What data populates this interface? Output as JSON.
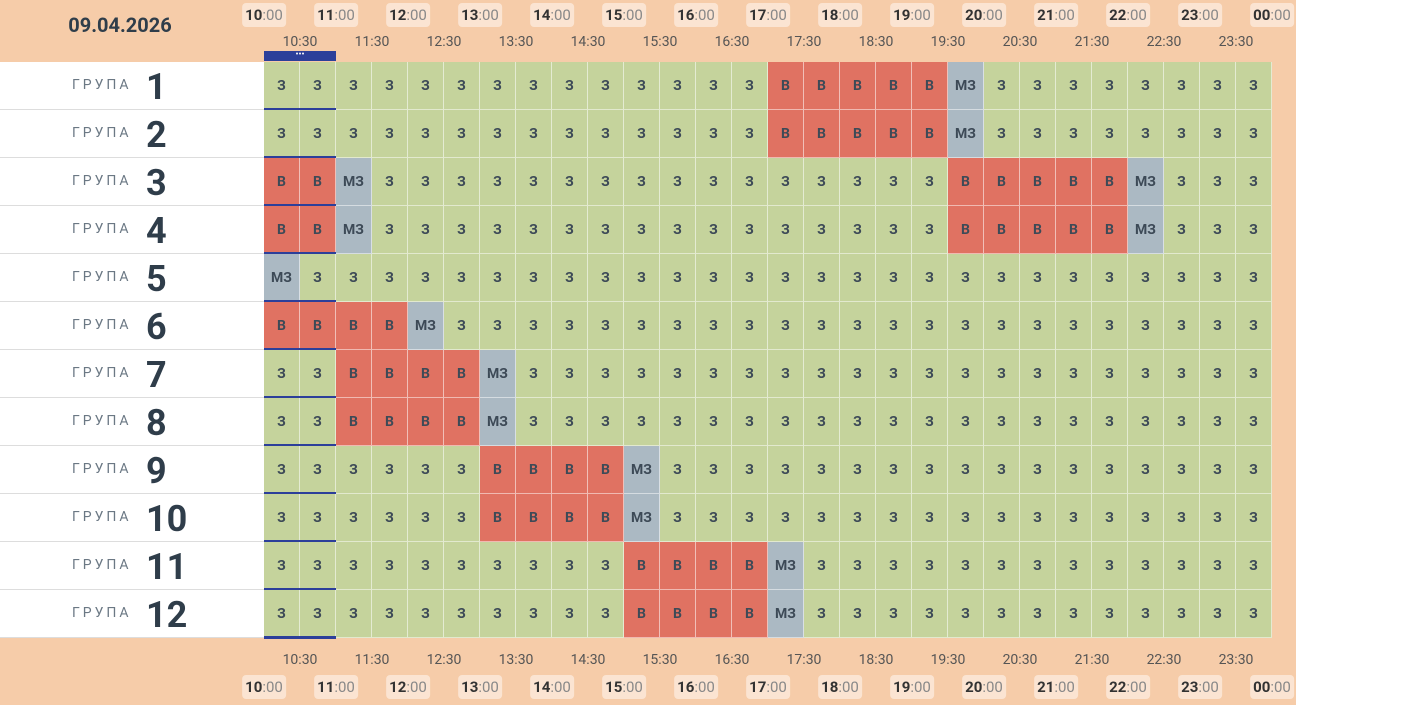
{
  "date": "09.04.2026",
  "hours": [
    {
      "hour": "10",
      "minutes": ":00"
    },
    {
      "hour": "11",
      "minutes": ":00"
    },
    {
      "hour": "12",
      "minutes": ":00"
    },
    {
      "hour": "13",
      "minutes": ":00"
    },
    {
      "hour": "14",
      "minutes": ":00"
    },
    {
      "hour": "15",
      "minutes": ":00"
    },
    {
      "hour": "16",
      "minutes": ":00"
    },
    {
      "hour": "17",
      "minutes": ":00"
    },
    {
      "hour": "18",
      "minutes": ":00"
    },
    {
      "hour": "19",
      "minutes": ":00"
    },
    {
      "hour": "20",
      "minutes": ":00"
    },
    {
      "hour": "21",
      "minutes": ":00"
    },
    {
      "hour": "22",
      "minutes": ":00"
    },
    {
      "hour": "23",
      "minutes": ":00"
    },
    {
      "hour": "00",
      "minutes": ":00"
    }
  ],
  "half_hours": [
    "10:30",
    "11:30",
    "12:30",
    "13:30",
    "14:30",
    "15:30",
    "16:30",
    "17:30",
    "18:30",
    "19:30",
    "20:30",
    "21:30",
    "22:30",
    "23:30"
  ],
  "status_colors": {
    "З": "#c5d39c",
    "В": "#e07262",
    "МЗ": "#abb9c3"
  },
  "groups": [
    {
      "label": "ГРУПА",
      "number": 1,
      "cells": [
        "З",
        "З",
        "З",
        "З",
        "З",
        "З",
        "З",
        "З",
        "З",
        "З",
        "З",
        "З",
        "З",
        "З",
        "В",
        "В",
        "В",
        "В",
        "В",
        "МЗ",
        "З",
        "З",
        "З",
        "З",
        "З",
        "З",
        "З",
        "З"
      ]
    },
    {
      "label": "ГРУПА",
      "number": 2,
      "cells": [
        "З",
        "З",
        "З",
        "З",
        "З",
        "З",
        "З",
        "З",
        "З",
        "З",
        "З",
        "З",
        "З",
        "З",
        "В",
        "В",
        "В",
        "В",
        "В",
        "МЗ",
        "З",
        "З",
        "З",
        "З",
        "З",
        "З",
        "З",
        "З"
      ]
    },
    {
      "label": "ГРУПА",
      "number": 3,
      "cells": [
        "В",
        "В",
        "МЗ",
        "З",
        "З",
        "З",
        "З",
        "З",
        "З",
        "З",
        "З",
        "З",
        "З",
        "З",
        "З",
        "З",
        "З",
        "З",
        "З",
        "В",
        "В",
        "В",
        "В",
        "В",
        "МЗ",
        "З",
        "З",
        "З"
      ]
    },
    {
      "label": "ГРУПА",
      "number": 4,
      "cells": [
        "В",
        "В",
        "МЗ",
        "З",
        "З",
        "З",
        "З",
        "З",
        "З",
        "З",
        "З",
        "З",
        "З",
        "З",
        "З",
        "З",
        "З",
        "З",
        "З",
        "В",
        "В",
        "В",
        "В",
        "В",
        "МЗ",
        "З",
        "З",
        "З"
      ]
    },
    {
      "label": "ГРУПА",
      "number": 5,
      "cells": [
        "МЗ",
        "З",
        "З",
        "З",
        "З",
        "З",
        "З",
        "З",
        "З",
        "З",
        "З",
        "З",
        "З",
        "З",
        "З",
        "З",
        "З",
        "З",
        "З",
        "З",
        "З",
        "З",
        "З",
        "З",
        "З",
        "З",
        "З",
        "З"
      ]
    },
    {
      "label": "ГРУПА",
      "number": 6,
      "cells": [
        "В",
        "В",
        "В",
        "В",
        "МЗ",
        "З",
        "З",
        "З",
        "З",
        "З",
        "З",
        "З",
        "З",
        "З",
        "З",
        "З",
        "З",
        "З",
        "З",
        "З",
        "З",
        "З",
        "З",
        "З",
        "З",
        "З",
        "З",
        "З"
      ]
    },
    {
      "label": "ГРУПА",
      "number": 7,
      "cells": [
        "З",
        "З",
        "В",
        "В",
        "В",
        "В",
        "МЗ",
        "З",
        "З",
        "З",
        "З",
        "З",
        "З",
        "З",
        "З",
        "З",
        "З",
        "З",
        "З",
        "З",
        "З",
        "З",
        "З",
        "З",
        "З",
        "З",
        "З",
        "З"
      ]
    },
    {
      "label": "ГРУПА",
      "number": 8,
      "cells": [
        "З",
        "З",
        "В",
        "В",
        "В",
        "В",
        "МЗ",
        "З",
        "З",
        "З",
        "З",
        "З",
        "З",
        "З",
        "З",
        "З",
        "З",
        "З",
        "З",
        "З",
        "З",
        "З",
        "З",
        "З",
        "З",
        "З",
        "З",
        "З"
      ]
    },
    {
      "label": "ГРУПА",
      "number": 9,
      "cells": [
        "З",
        "З",
        "З",
        "З",
        "З",
        "З",
        "В",
        "В",
        "В",
        "В",
        "МЗ",
        "З",
        "З",
        "З",
        "З",
        "З",
        "З",
        "З",
        "З",
        "З",
        "З",
        "З",
        "З",
        "З",
        "З",
        "З",
        "З",
        "З"
      ]
    },
    {
      "label": "ГРУПА",
      "number": 10,
      "cells": [
        "З",
        "З",
        "З",
        "З",
        "З",
        "З",
        "В",
        "В",
        "В",
        "В",
        "МЗ",
        "З",
        "З",
        "З",
        "З",
        "З",
        "З",
        "З",
        "З",
        "З",
        "З",
        "З",
        "З",
        "З",
        "З",
        "З",
        "З",
        "З"
      ]
    },
    {
      "label": "ГРУПА",
      "number": 11,
      "cells": [
        "З",
        "З",
        "З",
        "З",
        "З",
        "З",
        "З",
        "З",
        "З",
        "З",
        "В",
        "В",
        "В",
        "В",
        "МЗ",
        "З",
        "З",
        "З",
        "З",
        "З",
        "З",
        "З",
        "З",
        "З",
        "З",
        "З",
        "З",
        "З"
      ]
    },
    {
      "label": "ГРУПА",
      "number": 12,
      "cells": [
        "З",
        "З",
        "З",
        "З",
        "З",
        "З",
        "З",
        "З",
        "З",
        "З",
        "В",
        "В",
        "В",
        "В",
        "МЗ",
        "З",
        "З",
        "З",
        "З",
        "З",
        "З",
        "З",
        "З",
        "З",
        "З",
        "З",
        "З",
        "З"
      ]
    }
  ]
}
